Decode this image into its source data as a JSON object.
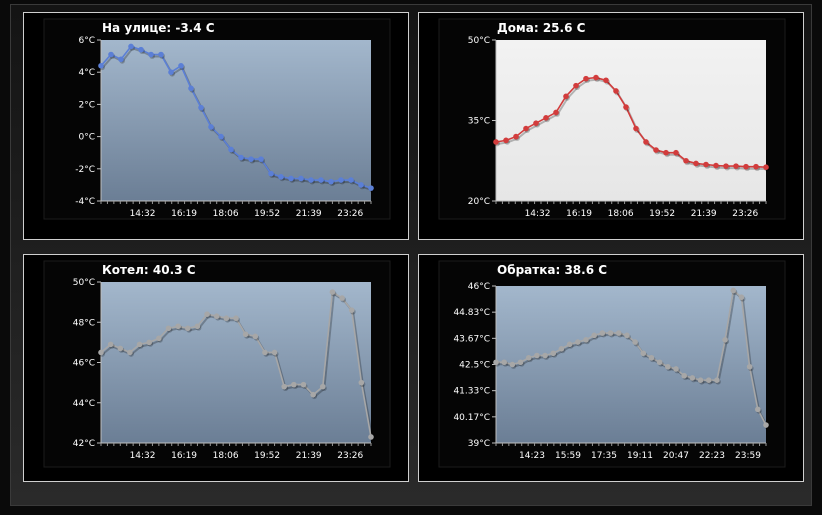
{
  "colors": {
    "blue": "#5b7fd6",
    "red": "#d23c3c",
    "gray": "#a7a7a7",
    "plot_bg_top": "#a1b5ca",
    "plot_bg_bottom": "#6c7f96",
    "plot_bg_light": "#ececec"
  },
  "panels": [
    {
      "title": "На улице:  -3.4  C",
      "chart_data": {
        "type": "line",
        "title": "На улице:  -3.4  C",
        "x_ticks": [
          "14:32",
          "16:19",
          "18:06",
          "19:52",
          "21:39",
          "23:26"
        ],
        "y_ticks": [
          "-4°C",
          "-2°C",
          "0°C",
          "2°C",
          "4°C",
          "6°C"
        ],
        "ylim": [
          -4,
          6
        ],
        "series": [
          {
            "values": [
              4.4,
              5.1,
              4.8,
              5.6,
              5.4,
              5.1,
              5.1,
              4.0,
              4.4,
              3.0,
              1.8,
              0.6,
              0.0,
              -0.8,
              -1.3,
              -1.4,
              -1.4,
              -2.3,
              -2.5,
              -2.6,
              -2.6,
              -2.7,
              -2.7,
              -2.8,
              -2.7,
              -2.7,
              -3.0,
              -3.2
            ]
          }
        ],
        "plot_style": "blue-gradient",
        "line_color": "#5b7fd6"
      }
    },
    {
      "title": "Дома:  25.6  C",
      "chart_data": {
        "type": "line",
        "title": "Дома:  25.6  C",
        "x_ticks": [
          "14:32",
          "16:19",
          "18:06",
          "19:52",
          "21:39",
          "23:26"
        ],
        "y_ticks": [
          "20°C",
          "35°C",
          "50°C"
        ],
        "ylim": [
          20,
          50
        ],
        "series": [
          {
            "values": [
              31.0,
              31.3,
              32.0,
              33.5,
              34.5,
              35.5,
              36.5,
              39.5,
              41.5,
              42.8,
              43.0,
              42.5,
              40.5,
              37.5,
              33.5,
              31.0,
              29.5,
              29.0,
              29.0,
              27.5,
              27.0,
              26.8,
              26.6,
              26.5,
              26.5,
              26.4,
              26.4,
              26.3
            ]
          }
        ],
        "plot_style": "light",
        "line_color": "#d23c3c"
      }
    },
    {
      "title": "Котел:  40.3  C",
      "chart_data": {
        "type": "line",
        "title": "Котел:  40.3  C",
        "x_ticks": [
          "14:32",
          "16:19",
          "18:06",
          "19:52",
          "21:39",
          "23:26"
        ],
        "y_ticks": [
          "42°C",
          "44°C",
          "46°C",
          "48°C",
          "50°C"
        ],
        "ylim": [
          42,
          50
        ],
        "series": [
          {
            "values": [
              46.5,
              46.9,
              46.7,
              46.5,
              46.9,
              47.0,
              47.2,
              47.7,
              47.8,
              47.7,
              47.8,
              48.4,
              48.3,
              48.2,
              48.2,
              47.4,
              47.3,
              46.5,
              46.5,
              44.8,
              44.9,
              44.9,
              44.4,
              44.8,
              49.5,
              49.2,
              48.6,
              45.0,
              42.3
            ]
          }
        ],
        "plot_style": "blue-gradient",
        "line_color": "#a7a7a7"
      }
    },
    {
      "title": "Обратка:  38.6  C",
      "chart_data": {
        "type": "line",
        "title": "Обратка:  38.6  C",
        "x_ticks": [
          "14:23",
          "15:59",
          "17:35",
          "19:11",
          "20:47",
          "22:23",
          "23:59"
        ],
        "y_ticks": [
          "39°C",
          "40.17°C",
          "41.33°C",
          "42.5°C",
          "43.67°C",
          "44.83°C",
          "46°C"
        ],
        "ylim": [
          39,
          46
        ],
        "series": [
          {
            "values": [
              42.6,
              42.6,
              42.5,
              42.6,
              42.8,
              42.9,
              42.9,
              43.0,
              43.2,
              43.4,
              43.5,
              43.6,
              43.8,
              43.9,
              43.9,
              43.9,
              43.8,
              43.5,
              43.0,
              42.8,
              42.6,
              42.4,
              42.3,
              42.0,
              41.9,
              41.8,
              41.8,
              41.8,
              43.6,
              45.8,
              45.5,
              42.4,
              40.5,
              39.8
            ]
          }
        ],
        "plot_style": "blue-gradient",
        "line_color": "#a7a7a7"
      }
    }
  ]
}
